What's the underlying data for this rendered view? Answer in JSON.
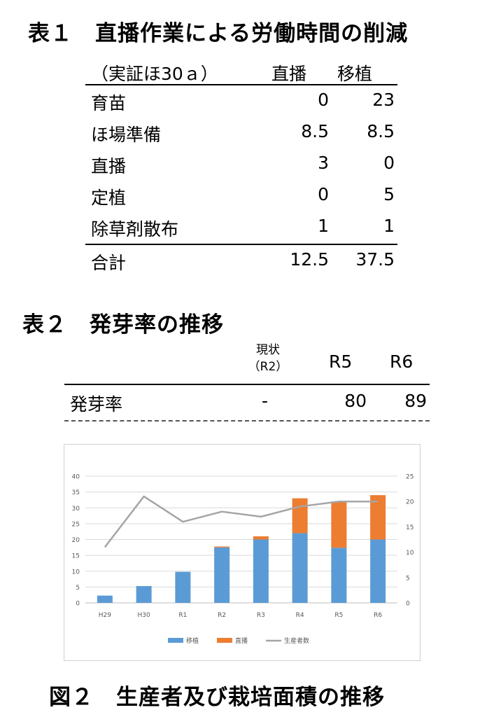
{
  "table1": {
    "title": "表１　直播作業による労働時間の削減",
    "unit_label": "（実証ほ30ａ）",
    "col_direct": "直播",
    "col_transplant": "移植",
    "rows": [
      {
        "label": "育苗",
        "direct": "0",
        "transplant": "23"
      },
      {
        "label": "ほ場準備",
        "direct": "8.5",
        "transplant": "8.5"
      },
      {
        "label": "直播",
        "direct": "3",
        "transplant": "0"
      },
      {
        "label": "定植",
        "direct": "0",
        "transplant": "5"
      },
      {
        "label": "除草剤散布",
        "direct": "1",
        "transplant": "1"
      }
    ],
    "total": {
      "label": "合計",
      "direct": "12.5",
      "transplant": "37.5"
    }
  },
  "table2": {
    "title": "表２　発芽率の推移",
    "col_current_line1": "現状",
    "col_current_line2": "（R2）",
    "col_r5": "R5",
    "col_r6": "R6",
    "row": {
      "label": "発芽率",
      "current": "-",
      "r5": "80",
      "r6": "89"
    }
  },
  "chart_data": {
    "type": "bar",
    "stacked": true,
    "categories": [
      "H29",
      "H30",
      "R1",
      "R2",
      "R3",
      "R4",
      "R5",
      "R6"
    ],
    "series": [
      {
        "name": "移植",
        "color": "#5b9bd5",
        "values": [
          2.3,
          5.3,
          9.8,
          17.5,
          20,
          22,
          17.4,
          20
        ]
      },
      {
        "name": "直播",
        "color": "#ed7d31",
        "values": [
          0,
          0,
          0,
          0.3,
          1,
          11,
          14.6,
          14
        ]
      },
      {
        "name": "生産者数",
        "type": "line",
        "axis": "right",
        "color": "#a5a5a5",
        "values": [
          11,
          21,
          16,
          18,
          17,
          19,
          20,
          20
        ]
      }
    ],
    "ylim": [
      0,
      40
    ],
    "yticks": [
      "0",
      "5",
      "10",
      "15",
      "20",
      "25",
      "30",
      "35",
      "40"
    ],
    "y2lim": [
      0,
      25
    ],
    "y2ticks": [
      "0",
      "5",
      "10",
      "15",
      "20",
      "25"
    ],
    "grid": true,
    "legend": "bottom",
    "caption": "図２　生産者及び栽培面積の推移"
  }
}
